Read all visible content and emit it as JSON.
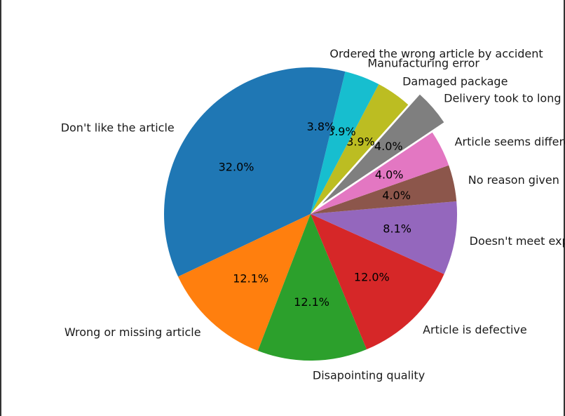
{
  "chart_data": {
    "type": "pie",
    "title": "",
    "start_angle_deg": 90,
    "direction": "counterclockwise",
    "categories": [
      "Don't like the article",
      "Wrong or missing article",
      "Disapointing quality",
      "Article is defective",
      "Doesn't meet expectations",
      "No reason given",
      "Article seems different than online",
      "Delivery took to long",
      "Damaged package",
      "Manufacturing error",
      "Ordered the wrong article by accident"
    ],
    "values": [
      32.0,
      12.1,
      12.1,
      12.0,
      8.1,
      4.0,
      4.0,
      4.0,
      3.9,
      3.9,
      3.8
    ],
    "percent_labels": [
      "32.0%",
      "12.1%",
      "12.1%",
      "12.0%",
      "8.1%",
      "4.0%",
      "4.0%",
      "4.0%",
      "3.9%",
      "3.9%",
      "3.8%"
    ],
    "colors": [
      "#1f77b4",
      "#ff7f0e",
      "#2ca02c",
      "#d62728",
      "#9467bd",
      "#8c564b",
      "#e377c2",
      "#7f7f7f",
      "#bcbd22",
      "#17becf",
      "#1f77b4"
    ],
    "exploded": [
      "Delivery took to long"
    ]
  }
}
